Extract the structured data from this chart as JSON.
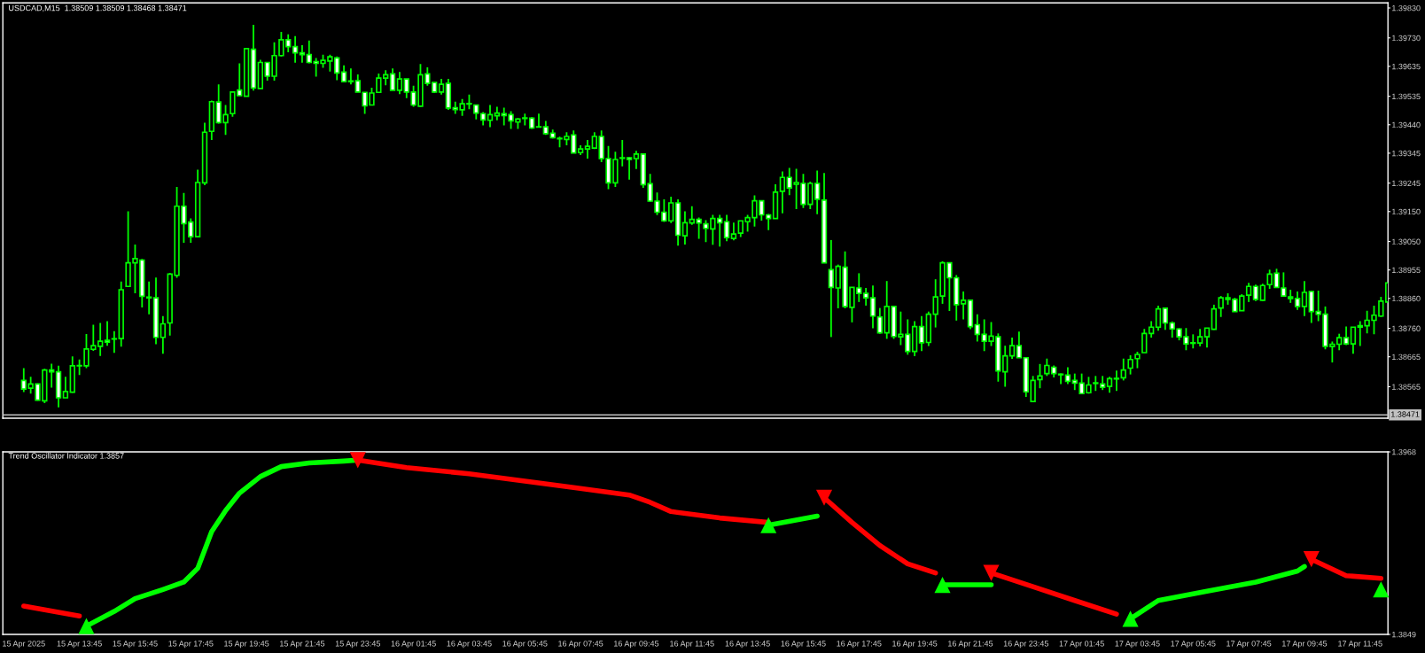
{
  "chart_data": [
    {
      "type": "candlestick",
      "title": "USDCAD,M15  1.38509 1.38509 1.38468 1.38471",
      "tick_labels": "y",
      "color": "#00ff00",
      "colors": [
        "#ffffff",
        "#00ff00",
        "#ffffff",
        "#00ff00",
        "#ffffff",
        "#ffffff",
        "#00ff00",
        "#00ff00",
        "#00ff00",
        "#00ff00",
        "#00ff00",
        "#00ff00",
        "#ffffff",
        "#00ff00",
        "#00ff00",
        "#00ff00",
        "#00ff00",
        "#ffffff",
        "#ffffff",
        "#ffffff",
        "#00ff00",
        "#00ff00",
        "#00ff00",
        "#ffffff",
        "#ffffff",
        "#00ff00",
        "#00ff00",
        "#00ff00",
        "#ffffff",
        "#00ff00",
        "#00ff00",
        "#ffffff",
        "#00ff00",
        "#ffffff",
        "#00ff00",
        "#ffffff",
        "#00ff00",
        "#00ff00",
        "#ffffff",
        "#ffffff",
        "#ffffff",
        "#ffffff",
        "#ffffff",
        "#00ff00",
        "#00ff00",
        "#ffffff",
        "#ffffff",
        "#ffffff",
        "#ffffff",
        "#ffffff",
        "#00ff00",
        "#00ff00",
        "#00ff00",
        "#ffffff",
        "#00ff00",
        "#ffffff",
        "#ffffff",
        "#00ff00",
        "#ffffff",
        "#ffffff",
        "#00ff00",
        "#ffffff",
        "#ffffff",
        "#00ff00",
        "#ffffff",
        "#ffffff",
        "#ffffff",
        "#00ff00",
        "#00ff00",
        "#ffffff",
        "#ffffff",
        "#00ff00",
        "#ffffff",
        "#ffffff",
        "#00ff00",
        "#ffffff",
        "#ffffff",
        "#ffffff",
        "#00ff00",
        "#ffffff",
        "#00ff00",
        "#00ff00",
        "#00ff00",
        "#ffffff",
        "#ffffff",
        "#00ff00",
        "#ffffff",
        "#ffffff",
        "#00ff00",
        "#ffffff",
        "#ffffff",
        "#ffffff",
        "#ffffff",
        "#00ff00",
        "#ffffff",
        "#00ff00",
        "#00ff00",
        "#ffffff",
        "#ffffff",
        "#00ff00",
        "#ffffff",
        "#ffffff",
        "#00ff00",
        "#00ff00",
        "#00ff00",
        "#00ff00",
        "#ffffff",
        "#ffffff",
        "#00ff00",
        "#00ff00",
        "#ffffff",
        "#00ff00",
        "#ffffff",
        "#00ff00",
        "#ffffff",
        "#ffffff",
        "#ffffff",
        "#00ff00",
        "#ffffff",
        "#00ff00",
        "#ffffff",
        "#ffffff",
        "#ffffff",
        "#ffffff",
        "#00ff00",
        "#ffffff",
        "#00ff00",
        "#ffffff",
        "#00ff00",
        "#ffffff",
        "#00ff00",
        "#00ff00",
        "#00ff00",
        "#ffffff",
        "#ffffff",
        "#00ff00",
        "#ffffff",
        "#ffffff",
        "#ffffff",
        "#00ff00",
        "#ffffff",
        "#00ff00",
        "#00ff00",
        "#ffffff",
        "#ffffff",
        "#00ff00",
        "#00ff00",
        "#00ff00",
        "#ffffff",
        "#ffffff",
        "#ffffff",
        "#ffffff",
        "#ffffff",
        "#00ff00",
        "#ffffff",
        "#ffffff",
        "#00ff00",
        "#00ff00",
        "#00ff00",
        "#00ff00",
        "#00ff00",
        "#00ff00",
        "#00ff00",
        "#00ff00",
        "#ffffff",
        "#ffffff",
        "#ffffff",
        "#ffffff",
        "#ffffff",
        "#00ff00",
        "#00ff00",
        "#00ff00",
        "#00ff00",
        "#ffffff",
        "#ffffff",
        "#00ff00",
        "#00ff00",
        "#ffffff",
        "#00ff00",
        "#00ff00",
        "#ffffff",
        "#ffffff",
        "#ffffff",
        "#ffffff",
        "#00ff00",
        "#ffffff",
        "#ffffff",
        "#ffffff",
        "#00ff00",
        "#00ff00",
        "#ffffff",
        "#00ff00",
        "#00ff00",
        "#00ff00",
        "#00ff00",
        "#00ff00",
        "#00ff00"
      ],
      "xlim": [
        "2025-04-15T11:00",
        "2025-04-17T12:45"
      ],
      "ylim": [
        1.3846,
        1.39847
      ],
      "yticks": [
        {
          "value": 1.3983,
          "label": "1.39830"
        },
        {
          "value": 1.3973,
          "label": "1.39730"
        },
        {
          "value": 1.39635,
          "label": "1.39635"
        },
        {
          "value": 1.39535,
          "label": "1.39535"
        },
        {
          "value": 1.3944,
          "label": "1.39440"
        },
        {
          "value": 1.39345,
          "label": "1.39345"
        },
        {
          "value": 1.39245,
          "label": "1.39245"
        },
        {
          "value": 1.3915,
          "label": "1.39150"
        },
        {
          "value": 1.3905,
          "label": "1.39050"
        },
        {
          "value": 1.38955,
          "label": "1.38955"
        },
        {
          "value": 1.3886,
          "label": "1.38860"
        },
        {
          "value": 1.3876,
          "label": "1.38760"
        },
        {
          "value": 1.38665,
          "label": "1.38665"
        },
        {
          "value": 1.38565,
          "label": "1.38565"
        }
      ],
      "ref_lines": [
        {
          "axis": "y",
          "value": 1.38471,
          "label": "1.38471",
          "color": "#c0c0c0"
        }
      ],
      "x": [
        "2025-04-15T11:45",
        "2025-04-15T12:00",
        "2025-04-15T12:15",
        "2025-04-15T12:30",
        "2025-04-15T12:45",
        "2025-04-15T13:00",
        "2025-04-15T13:15",
        "2025-04-15T13:30",
        "2025-04-15T13:45",
        "2025-04-15T14:00",
        "2025-04-15T14:15",
        "2025-04-15T14:30",
        "2025-04-15T14:45",
        "2025-04-15T15:00",
        "2025-04-15T15:15",
        "2025-04-15T15:30",
        "2025-04-15T15:45",
        "2025-04-15T16:00",
        "2025-04-15T16:15",
        "2025-04-15T16:30",
        "2025-04-15T16:45",
        "2025-04-15T17:00",
        "2025-04-15T17:15",
        "2025-04-15T17:30",
        "2025-04-15T17:45",
        "2025-04-15T18:00",
        "2025-04-15T18:15",
        "2025-04-15T18:30",
        "2025-04-15T18:45",
        "2025-04-15T19:00",
        "2025-04-15T19:15",
        "2025-04-15T19:30",
        "2025-04-15T19:45",
        "2025-04-15T20:00",
        "2025-04-15T20:15",
        "2025-04-15T20:30",
        "2025-04-15T20:45",
        "2025-04-15T21:00",
        "2025-04-15T21:15",
        "2025-04-15T21:30",
        "2025-04-15T21:45",
        "2025-04-15T22:00",
        "2025-04-15T22:15",
        "2025-04-15T22:30",
        "2025-04-15T22:45",
        "2025-04-15T23:00",
        "2025-04-15T23:15",
        "2025-04-15T23:30",
        "2025-04-15T23:45",
        "2025-04-16T00:00",
        "2025-04-16T00:15",
        "2025-04-16T00:30",
        "2025-04-16T00:45",
        "2025-04-16T01:00",
        "2025-04-16T01:15",
        "2025-04-16T01:30",
        "2025-04-16T01:45",
        "2025-04-16T02:00",
        "2025-04-16T02:15",
        "2025-04-16T02:30",
        "2025-04-16T02:45",
        "2025-04-16T03:00",
        "2025-04-16T03:15",
        "2025-04-16T03:30",
        "2025-04-16T03:45",
        "2025-04-16T04:00",
        "2025-04-16T04:15",
        "2025-04-16T04:30",
        "2025-04-16T04:45",
        "2025-04-16T05:00",
        "2025-04-16T05:15",
        "2025-04-16T05:30",
        "2025-04-16T05:45",
        "2025-04-16T06:00",
        "2025-04-16T06:15",
        "2025-04-16T06:30",
        "2025-04-16T06:45",
        "2025-04-16T07:00",
        "2025-04-16T07:15",
        "2025-04-16T07:30",
        "2025-04-16T07:45",
        "2025-04-16T08:00",
        "2025-04-16T08:15",
        "2025-04-16T08:30",
        "2025-04-16T08:45",
        "2025-04-16T09:00",
        "2025-04-16T09:15",
        "2025-04-16T09:30",
        "2025-04-16T09:45",
        "2025-04-16T10:00",
        "2025-04-16T10:15",
        "2025-04-16T10:30",
        "2025-04-16T10:45",
        "2025-04-16T11:00",
        "2025-04-16T11:15",
        "2025-04-16T11:30",
        "2025-04-16T11:45",
        "2025-04-16T12:00",
        "2025-04-16T12:15",
        "2025-04-16T12:30",
        "2025-04-16T12:45",
        "2025-04-16T13:00",
        "2025-04-16T13:15",
        "2025-04-16T13:30",
        "2025-04-16T13:45",
        "2025-04-16T14:00",
        "2025-04-16T14:15",
        "2025-04-16T14:30",
        "2025-04-16T14:45",
        "2025-04-16T15:00",
        "2025-04-16T15:15",
        "2025-04-16T15:30",
        "2025-04-16T15:45",
        "2025-04-16T16:00",
        "2025-04-16T16:15",
        "2025-04-16T16:30",
        "2025-04-16T16:45",
        "2025-04-16T17:00",
        "2025-04-16T17:15",
        "2025-04-16T17:30",
        "2025-04-16T17:45",
        "2025-04-16T18:00",
        "2025-04-16T18:15",
        "2025-04-16T18:30",
        "2025-04-16T18:45",
        "2025-04-16T19:00",
        "2025-04-16T19:15",
        "2025-04-16T19:30",
        "2025-04-16T19:45",
        "2025-04-16T20:00",
        "2025-04-16T20:15",
        "2025-04-16T20:30",
        "2025-04-16T20:45",
        "2025-04-16T21:00",
        "2025-04-16T21:15",
        "2025-04-16T21:30",
        "2025-04-16T21:45",
        "2025-04-16T22:00",
        "2025-04-16T22:15",
        "2025-04-16T22:30",
        "2025-04-16T22:45",
        "2025-04-16T23:00",
        "2025-04-16T23:15",
        "2025-04-16T23:30",
        "2025-04-16T23:45",
        "2025-04-17T00:00",
        "2025-04-17T00:15",
        "2025-04-17T00:30",
        "2025-04-17T00:45",
        "2025-04-17T01:00",
        "2025-04-17T01:15",
        "2025-04-17T01:30",
        "2025-04-17T01:45",
        "2025-04-17T02:00",
        "2025-04-17T02:15",
        "2025-04-17T02:30",
        "2025-04-17T02:45",
        "2025-04-17T03:00",
        "2025-04-17T03:15",
        "2025-04-17T03:30",
        "2025-04-17T03:45",
        "2025-04-17T04:00",
        "2025-04-17T04:15",
        "2025-04-17T04:30",
        "2025-04-17T04:45",
        "2025-04-17T05:00",
        "2025-04-17T05:15",
        "2025-04-17T05:30",
        "2025-04-17T05:45",
        "2025-04-17T06:00",
        "2025-04-17T06:15",
        "2025-04-17T06:30",
        "2025-04-17T06:45",
        "2025-04-17T07:00",
        "2025-04-17T07:15",
        "2025-04-17T07:30",
        "2025-04-17T07:45",
        "2025-04-17T08:00",
        "2025-04-17T08:15",
        "2025-04-17T08:30",
        "2025-04-17T08:45",
        "2025-04-17T09:00",
        "2025-04-17T09:15",
        "2025-04-17T09:30",
        "2025-04-17T09:45",
        "2025-04-17T10:00",
        "2025-04-17T10:15",
        "2025-04-17T10:30",
        "2025-04-17T10:45",
        "2025-04-17T11:00",
        "2025-04-17T11:15",
        "2025-04-17T11:30",
        "2025-04-17T11:45",
        "2025-04-17T12:00",
        "2025-04-17T12:15",
        "2025-04-17T12:30",
        "2025-04-17T12:45"
      ],
      "ohlc": [
        [
          1.38586,
          1.38627,
          1.38547,
          1.38557
        ],
        [
          1.3856,
          1.38598,
          1.38542,
          1.38574
        ],
        [
          1.38574,
          1.38576,
          1.38518,
          1.3852
        ],
        [
          1.38518,
          1.38625,
          1.3851,
          1.38621
        ],
        [
          1.38621,
          1.38642,
          1.38562,
          1.38615
        ],
        [
          1.38615,
          1.38635,
          1.38496,
          1.38528
        ],
        [
          1.38528,
          1.38598,
          1.38528,
          1.38549
        ],
        [
          1.38547,
          1.38666,
          1.38545,
          1.38635
        ],
        [
          1.38635,
          1.38656,
          1.38604,
          1.38636
        ],
        [
          1.38635,
          1.38741,
          1.38627,
          1.38691
        ],
        [
          1.3869,
          1.38772,
          1.38685,
          1.38702
        ],
        [
          1.387,
          1.38778,
          1.38668,
          1.38717
        ],
        [
          1.3872,
          1.38784,
          1.38702,
          1.38714
        ],
        [
          1.38724,
          1.38751,
          1.38678,
          1.38725
        ],
        [
          1.38726,
          1.38916,
          1.38699,
          1.38889
        ],
        [
          1.389,
          1.39151,
          1.389,
          1.38979
        ],
        [
          1.38979,
          1.3904,
          1.38877,
          1.38993
        ],
        [
          1.38988,
          1.38992,
          1.3883,
          1.38867
        ],
        [
          1.38864,
          1.38916,
          1.38807,
          1.38862
        ],
        [
          1.38862,
          1.3893,
          1.38707,
          1.3873
        ],
        [
          1.3873,
          1.38801,
          1.38675,
          1.38775
        ],
        [
          1.38778,
          1.38945,
          1.38736,
          1.38941
        ],
        [
          1.38937,
          1.39232,
          1.38929,
          1.39168
        ],
        [
          1.39168,
          1.39212,
          1.39046,
          1.3911
        ],
        [
          1.39115,
          1.39127,
          1.39046,
          1.39066
        ],
        [
          1.39066,
          1.3929,
          1.39066,
          1.39247
        ],
        [
          1.39246,
          1.39447,
          1.39238,
          1.39415
        ],
        [
          1.39418,
          1.39521,
          1.39389,
          1.39517
        ],
        [
          1.39516,
          1.39575,
          1.39444,
          1.39447
        ],
        [
          1.39447,
          1.39506,
          1.39406,
          1.39474
        ],
        [
          1.39477,
          1.39549,
          1.39467,
          1.39549
        ],
        [
          1.39556,
          1.39645,
          1.39537,
          1.39537
        ],
        [
          1.39535,
          1.39696,
          1.39535,
          1.39694
        ],
        [
          1.39692,
          1.39774,
          1.39554,
          1.39563
        ],
        [
          1.39561,
          1.39657,
          1.39561,
          1.39648
        ],
        [
          1.39648,
          1.39648,
          1.39587,
          1.39602
        ],
        [
          1.39602,
          1.39715,
          1.39587,
          1.39671
        ],
        [
          1.39671,
          1.3975,
          1.39668,
          1.39724
        ],
        [
          1.39724,
          1.39742,
          1.39682,
          1.39701
        ],
        [
          1.39701,
          1.39736,
          1.39647,
          1.3968
        ],
        [
          1.3968,
          1.39706,
          1.39647,
          1.39674
        ],
        [
          1.39674,
          1.39721,
          1.39645,
          1.39648
        ],
        [
          1.39651,
          1.39663,
          1.39601,
          1.39645
        ],
        [
          1.39645,
          1.39674,
          1.3963,
          1.39655
        ],
        [
          1.39653,
          1.39674,
          1.39618,
          1.39667
        ],
        [
          1.39663,
          1.39668,
          1.39589,
          1.39613
        ],
        [
          1.39616,
          1.39638,
          1.39583,
          1.39584
        ],
        [
          1.39586,
          1.39628,
          1.39575,
          1.39584
        ],
        [
          1.39587,
          1.39608,
          1.39549,
          1.39549
        ],
        [
          1.39548,
          1.39548,
          1.39476,
          1.39503
        ],
        [
          1.39506,
          1.39564,
          1.39506,
          1.39546
        ],
        [
          1.39548,
          1.39611,
          1.39546,
          1.39596
        ],
        [
          1.39596,
          1.39622,
          1.39572,
          1.39607
        ],
        [
          1.3961,
          1.39628,
          1.39555,
          1.39555
        ],
        [
          1.39555,
          1.39616,
          1.39542,
          1.39593
        ],
        [
          1.39593,
          1.39593,
          1.39529,
          1.39549
        ],
        [
          1.39549,
          1.3957,
          1.395,
          1.39506
        ],
        [
          1.39502,
          1.39643,
          1.395,
          1.39607
        ],
        [
          1.3961,
          1.39632,
          1.3957,
          1.39578
        ],
        [
          1.39581,
          1.39581,
          1.39546,
          1.39549
        ],
        [
          1.39549,
          1.39593,
          1.39541,
          1.39575
        ],
        [
          1.39578,
          1.39593,
          1.3949,
          1.39496
        ],
        [
          1.39497,
          1.39517,
          1.39476,
          1.39491
        ],
        [
          1.3949,
          1.39526,
          1.3947,
          1.3951
        ],
        [
          1.39511,
          1.39541,
          1.39492,
          1.39509
        ],
        [
          1.39506,
          1.39506,
          1.39458,
          1.39479
        ],
        [
          1.39477,
          1.39482,
          1.39438,
          1.39456
        ],
        [
          1.39455,
          1.39506,
          1.39432,
          1.39474
        ],
        [
          1.3947,
          1.395,
          1.39455,
          1.39479
        ],
        [
          1.39477,
          1.39497,
          1.39438,
          1.39471
        ],
        [
          1.39474,
          1.39485,
          1.39426,
          1.39453
        ],
        [
          1.39449,
          1.39462,
          1.39426,
          1.39459
        ],
        [
          1.39463,
          1.39477,
          1.39438,
          1.39461
        ],
        [
          1.39462,
          1.39465,
          1.39426,
          1.39429
        ],
        [
          1.39432,
          1.39477,
          1.39432,
          1.39433
        ],
        [
          1.39433,
          1.39453,
          1.39406,
          1.3941
        ],
        [
          1.39412,
          1.39424,
          1.39394,
          1.39397
        ],
        [
          1.39395,
          1.394,
          1.39365,
          1.39393
        ],
        [
          1.39391,
          1.39415,
          1.39371,
          1.39401
        ],
        [
          1.39406,
          1.39421,
          1.39346,
          1.39346
        ],
        [
          1.39347,
          1.39371,
          1.39339,
          1.39359
        ],
        [
          1.39359,
          1.39389,
          1.39327,
          1.39368
        ],
        [
          1.39362,
          1.39415,
          1.39359,
          1.39401
        ],
        [
          1.39401,
          1.39421,
          1.39315,
          1.39327
        ],
        [
          1.39327,
          1.39369,
          1.39225,
          1.39246
        ],
        [
          1.39246,
          1.3935,
          1.39232,
          1.39324
        ],
        [
          1.3933,
          1.39389,
          1.39301,
          1.39328
        ],
        [
          1.3933,
          1.39333,
          1.39257,
          1.39324
        ],
        [
          1.39327,
          1.39353,
          1.39292,
          1.39342
        ],
        [
          1.39342,
          1.39342,
          1.39229,
          1.3924
        ],
        [
          1.39243,
          1.39276,
          1.39182,
          1.39185
        ],
        [
          1.39185,
          1.39214,
          1.39138,
          1.39148
        ],
        [
          1.39148,
          1.39191,
          1.39115,
          1.39119
        ],
        [
          1.39119,
          1.392,
          1.39112,
          1.39179
        ],
        [
          1.39179,
          1.39191,
          1.39036,
          1.39071
        ],
        [
          1.39069,
          1.39151,
          1.3904,
          1.39113
        ],
        [
          1.39112,
          1.39168,
          1.39106,
          1.39124
        ],
        [
          1.39124,
          1.3913,
          1.39059,
          1.39112
        ],
        [
          1.39109,
          1.39121,
          1.39048,
          1.39094
        ],
        [
          1.39092,
          1.39139,
          1.39039,
          1.39127
        ],
        [
          1.39127,
          1.39139,
          1.39033,
          1.39113
        ],
        [
          1.39116,
          1.39139,
          1.39051,
          1.39063
        ],
        [
          1.3906,
          1.39113,
          1.39054,
          1.39075
        ],
        [
          1.39078,
          1.39119,
          1.39065,
          1.39119
        ],
        [
          1.39116,
          1.39139,
          1.39083,
          1.3913
        ],
        [
          1.3913,
          1.39204,
          1.391,
          1.39186
        ],
        [
          1.39186,
          1.39188,
          1.3912,
          1.39139
        ],
        [
          1.39139,
          1.39142,
          1.39088,
          1.39127
        ],
        [
          1.39127,
          1.39241,
          1.39127,
          1.39215
        ],
        [
          1.39218,
          1.39284,
          1.39144,
          1.39264
        ],
        [
          1.39264,
          1.39296,
          1.39205,
          1.39229
        ],
        [
          1.39241,
          1.39293,
          1.39158,
          1.39247
        ],
        [
          1.39244,
          1.39276,
          1.39162,
          1.39174
        ],
        [
          1.39174,
          1.3925,
          1.39158,
          1.39244
        ],
        [
          1.39244,
          1.39287,
          1.39141,
          1.39191
        ],
        [
          1.39188,
          1.39279,
          1.38979,
          1.38979
        ],
        [
          1.38956,
          1.39055,
          1.38731,
          1.38897
        ],
        [
          1.38895,
          1.38973,
          1.38827,
          1.38967
        ],
        [
          1.38964,
          1.39017,
          1.38827,
          1.38833
        ],
        [
          1.3883,
          1.38897,
          1.3878,
          1.38897
        ],
        [
          1.38895,
          1.38944,
          1.38848,
          1.38877
        ],
        [
          1.38877,
          1.38895,
          1.38836,
          1.38862
        ],
        [
          1.38862,
          1.38903,
          1.3876,
          1.38801
        ],
        [
          1.38798,
          1.38828,
          1.38742,
          1.38745
        ],
        [
          1.38745,
          1.38918,
          1.38725,
          1.38833
        ],
        [
          1.38833,
          1.38833,
          1.38725,
          1.38733
        ],
        [
          1.38732,
          1.38816,
          1.38704,
          1.3874
        ],
        [
          1.3874,
          1.3879,
          1.38672,
          1.38683
        ],
        [
          1.38683,
          1.38784,
          1.38667,
          1.38766
        ],
        [
          1.38766,
          1.38801,
          1.38684,
          1.38712
        ],
        [
          1.38713,
          1.38816,
          1.38701,
          1.38807
        ],
        [
          1.38807,
          1.38924,
          1.38763,
          1.38865
        ],
        [
          1.38868,
          1.38984,
          1.38842,
          1.38979
        ],
        [
          1.38979,
          1.38979,
          1.38818,
          1.38929
        ],
        [
          1.38929,
          1.38938,
          1.38786,
          1.38839
        ],
        [
          1.38842,
          1.38883,
          1.3879,
          1.38854
        ],
        [
          1.38854,
          1.38854,
          1.38757,
          1.38766
        ],
        [
          1.38772,
          1.38807,
          1.38716,
          1.3874
        ],
        [
          1.3874,
          1.3879,
          1.38684,
          1.38717
        ],
        [
          1.38717,
          1.38781,
          1.38701,
          1.38734
        ],
        [
          1.38732,
          1.38743,
          1.38582,
          1.38618
        ],
        [
          1.38615,
          1.38702,
          1.38565,
          1.38668
        ],
        [
          1.38668,
          1.38729,
          1.38658,
          1.38702
        ],
        [
          1.38702,
          1.38749,
          1.38662,
          1.38662
        ],
        [
          1.38662,
          1.38662,
          1.38531,
          1.38548
        ],
        [
          1.38516,
          1.38601,
          1.38516,
          1.38586
        ],
        [
          1.38589,
          1.38641,
          1.3856,
          1.38601
        ],
        [
          1.38609,
          1.38659,
          1.38601,
          1.38636
        ],
        [
          1.3863,
          1.38636,
          1.38596,
          1.38609
        ],
        [
          1.38607,
          1.38609,
          1.38574,
          1.38605
        ],
        [
          1.38604,
          1.3863,
          1.38574,
          1.38583
        ],
        [
          1.38586,
          1.38609,
          1.38554,
          1.38577
        ],
        [
          1.38577,
          1.38609,
          1.38542,
          1.38542
        ],
        [
          1.38545,
          1.38598,
          1.38542,
          1.38571
        ],
        [
          1.38578,
          1.38601,
          1.38551,
          1.38576
        ],
        [
          1.38574,
          1.38601,
          1.38554,
          1.38563
        ],
        [
          1.38566,
          1.38598,
          1.38545,
          1.38592
        ],
        [
          1.38591,
          1.38619,
          1.38551,
          1.38593
        ],
        [
          1.38595,
          1.38659,
          1.38586,
          1.38621
        ],
        [
          1.38627,
          1.3867,
          1.38606,
          1.38656
        ],
        [
          1.38659,
          1.38682,
          1.38627,
          1.38673
        ],
        [
          1.38679,
          1.38758,
          1.38679,
          1.38743
        ],
        [
          1.38743,
          1.38784,
          1.38729,
          1.38764
        ],
        [
          1.38764,
          1.38836,
          1.38752,
          1.38825
        ],
        [
          1.38827,
          1.38827,
          1.38755,
          1.38778
        ],
        [
          1.38778,
          1.38783,
          1.38729,
          1.38758
        ],
        [
          1.38758,
          1.38761,
          1.3872,
          1.38732
        ],
        [
          1.38732,
          1.38761,
          1.38687,
          1.38708
        ],
        [
          1.38712,
          1.3874,
          1.38693,
          1.3871
        ],
        [
          1.38711,
          1.38758,
          1.387,
          1.38732
        ],
        [
          1.38732,
          1.38761,
          1.38696,
          1.38761
        ],
        [
          1.38757,
          1.38839,
          1.38755,
          1.38825
        ],
        [
          1.38828,
          1.38868,
          1.38798,
          1.38862
        ],
        [
          1.38862,
          1.38877,
          1.38839,
          1.38857
        ],
        [
          1.38857,
          1.38862,
          1.38816,
          1.38816
        ],
        [
          1.38819,
          1.38874,
          1.38819,
          1.38868
        ],
        [
          1.38871,
          1.38912,
          1.38848,
          1.389
        ],
        [
          1.389,
          1.38906,
          1.38851,
          1.38857
        ],
        [
          1.38854,
          1.38909,
          1.38851,
          1.38903
        ],
        [
          1.38906,
          1.38956,
          1.38892,
          1.38941
        ],
        [
          1.38944,
          1.38959,
          1.38895,
          1.38897
        ],
        [
          1.38895,
          1.38947,
          1.38868,
          1.38868
        ],
        [
          1.38865,
          1.38889,
          1.38845,
          1.3886
        ],
        [
          1.3886,
          1.38883,
          1.38822,
          1.38833
        ],
        [
          1.38833,
          1.38918,
          1.38801,
          1.3888
        ],
        [
          1.38883,
          1.38886,
          1.38778,
          1.38816
        ],
        [
          1.38816,
          1.38886,
          1.38784,
          1.38807
        ],
        [
          1.38807,
          1.38833,
          1.3869,
          1.387
        ],
        [
          1.38699,
          1.38716,
          1.38646,
          1.38707
        ],
        [
          1.38707,
          1.38742,
          1.38687,
          1.38729
        ],
        [
          1.38729,
          1.38766,
          1.38704,
          1.38708
        ],
        [
          1.38708,
          1.38764,
          1.38675,
          1.38764
        ],
        [
          1.38764,
          1.38784,
          1.38701,
          1.38769
        ],
        [
          1.38769,
          1.38819,
          1.38743,
          1.38787
        ],
        [
          1.38787,
          1.38836,
          1.3874,
          1.38804
        ],
        [
          1.38801,
          1.38865,
          1.38798,
          1.38851
        ],
        [
          1.38848,
          1.38912,
          1.38848,
          1.38912
        ]
      ]
    },
    {
      "type": "line",
      "title": "Trend Oscillator Indicator 1.3857",
      "xlim": [
        "2025-04-15T11:00",
        "2025-04-17T12:45"
      ],
      "ylim": [
        1.3849,
        1.3968
      ],
      "yticks": [
        1.3968,
        1.3849
      ],
      "xticks": [
        {
          "value": "2025-04-15T11:45",
          "label": "15 Apr 2025"
        },
        {
          "value": "2025-04-15T13:45",
          "label": "15 Apr 13:45"
        },
        {
          "value": "2025-04-15T15:45",
          "label": "15 Apr 15:45"
        },
        {
          "value": "2025-04-15T17:45",
          "label": "15 Apr 17:45"
        },
        {
          "value": "2025-04-15T19:45",
          "label": "15 Apr 19:45"
        },
        {
          "value": "2025-04-15T21:45",
          "label": "15 Apr 21:45"
        },
        {
          "value": "2025-04-15T23:45",
          "label": "15 Apr 23:45"
        },
        {
          "value": "2025-04-16T01:45",
          "label": "16 Apr 01:45"
        },
        {
          "value": "2025-04-16T03:45",
          "label": "16 Apr 03:45"
        },
        {
          "value": "2025-04-16T05:45",
          "label": "16 Apr 05:45"
        },
        {
          "value": "2025-04-16T07:45",
          "label": "16 Apr 07:45"
        },
        {
          "value": "2025-04-16T09:45",
          "label": "16 Apr 09:45"
        },
        {
          "value": "2025-04-16T11:45",
          "label": "16 Apr 11:45"
        },
        {
          "value": "2025-04-16T13:45",
          "label": "16 Apr 13:45"
        },
        {
          "value": "2025-04-16T15:45",
          "label": "16 Apr 15:45"
        },
        {
          "value": "2025-04-16T17:45",
          "label": "16 Apr 17:45"
        },
        {
          "value": "2025-04-16T19:45",
          "label": "16 Apr 19:45"
        },
        {
          "value": "2025-04-16T21:45",
          "label": "16 Apr 21:45"
        },
        {
          "value": "2025-04-16T23:45",
          "label": "16 Apr 23:45"
        },
        {
          "value": "2025-04-17T01:45",
          "label": "17 Apr 01:45"
        },
        {
          "value": "2025-04-17T03:45",
          "label": "17 Apr 03:45"
        },
        {
          "value": "2025-04-17T05:45",
          "label": "17 Apr 05:45"
        },
        {
          "value": "2025-04-17T07:45",
          "label": "17 Apr 07:45"
        },
        {
          "value": "2025-04-17T09:45",
          "label": "17 Apr 09:45"
        },
        {
          "value": "2025-04-17T11:45",
          "label": "17 Apr 11:45"
        }
      ],
      "series": [
        {
          "type": "line",
          "color": "#00ff00",
          "x": [
            "2025-04-15T14:00",
            "2025-04-15T15:00",
            "2025-04-15T15:45",
            "2025-04-15T16:45",
            "2025-04-15T17:30",
            "2025-04-15T18:00",
            "2025-04-15T18:15",
            "2025-04-15T18:30",
            "2025-04-15T19:00",
            "2025-04-15T19:30",
            "2025-04-15T20:15",
            "2025-04-15T21:00",
            "2025-04-15T22:00",
            "2025-04-15T23:15",
            "2025-04-15T23:45",
            "2025-04-16T03:45",
            "2025-04-16T14:30",
            "2025-04-16T16:15",
            "2025-04-16T18:30",
            "2025-04-16T20:45",
            "2025-04-16T22:30",
            "2025-04-17T01:30",
            "2025-04-17T03:30",
            "2025-04-17T04:30",
            "2025-04-17T06:15",
            "2025-04-17T08:00",
            "2025-04-17T09:30",
            "2025-04-17T09:45"
          ],
          "values": [
            1.38544,
            1.3864,
            1.38723,
            1.38783,
            1.38831,
            1.38921,
            1.3904,
            1.3916,
            1.39297,
            1.39411,
            1.39519,
            1.39584,
            1.39608,
            1.3962,
            1.39626,
            null,
            1.39202,
            1.39261,
            null,
            1.38813,
            1.38813,
            null,
            1.38592,
            1.38711,
            1.38771,
            1.38831,
            1.38903,
            1.38933
          ]
        },
        {
          "type": "line",
          "color": "#ff0000",
          "x": [
            "2025-04-15T11:45",
            "2025-04-15T13:45",
            "2025-04-15T16:45",
            "2025-04-15T23:45",
            "2025-04-16T01:30",
            "2025-04-16T03:45",
            "2025-04-16T05:45",
            "2025-04-16T07:30",
            "2025-04-16T09:30",
            "2025-04-16T10:15",
            "2025-04-16T11:00",
            "2025-04-16T12:45",
            "2025-04-16T14:30",
            "2025-04-16T15:00",
            "2025-04-16T16:30",
            "2025-04-16T17:30",
            "2025-04-16T18:30",
            "2025-04-16T19:30",
            "2025-04-16T20:30",
            "2025-04-16T21:30",
            "2025-04-16T22:30",
            "2025-04-17T00:00",
            "2025-04-17T01:30",
            "2025-04-17T03:00",
            "2025-04-17T06:15",
            "2025-04-17T10:00",
            "2025-04-17T11:15",
            "2025-04-17T12:30"
          ],
          "values": [
            1.38675,
            1.3861,
            null,
            1.39626,
            1.39578,
            1.39537,
            1.39489,
            1.39447,
            1.39399,
            1.39351,
            1.39291,
            1.39249,
            1.3922,
            null,
            1.39381,
            1.3922,
            1.3907,
            1.3895,
            1.38891,
            null,
            1.38891,
            1.38801,
            1.38711,
            1.38622,
            null,
            1.3898,
            1.38873,
            1.38855
          ]
        },
        {
          "type": "scatter",
          "marker": "triangle",
          "color": "#00ff00",
          "x": [
            "2025-04-15T14:00",
            "2025-04-16T14:30",
            "2025-04-16T20:45",
            "2025-04-17T03:30",
            "2025-04-17T12:30"
          ],
          "values": [
            1.38544,
            1.39202,
            1.38813,
            1.38592,
            1.38783
          ]
        },
        {
          "type": "scatter",
          "marker": "triangle_down",
          "color": "#ff0000",
          "x": [
            "2025-04-15T23:45",
            "2025-04-16T16:30",
            "2025-04-16T22:30",
            "2025-04-17T10:00"
          ],
          "values": [
            1.39626,
            1.39381,
            1.38891,
            1.3898
          ]
        }
      ]
    }
  ]
}
